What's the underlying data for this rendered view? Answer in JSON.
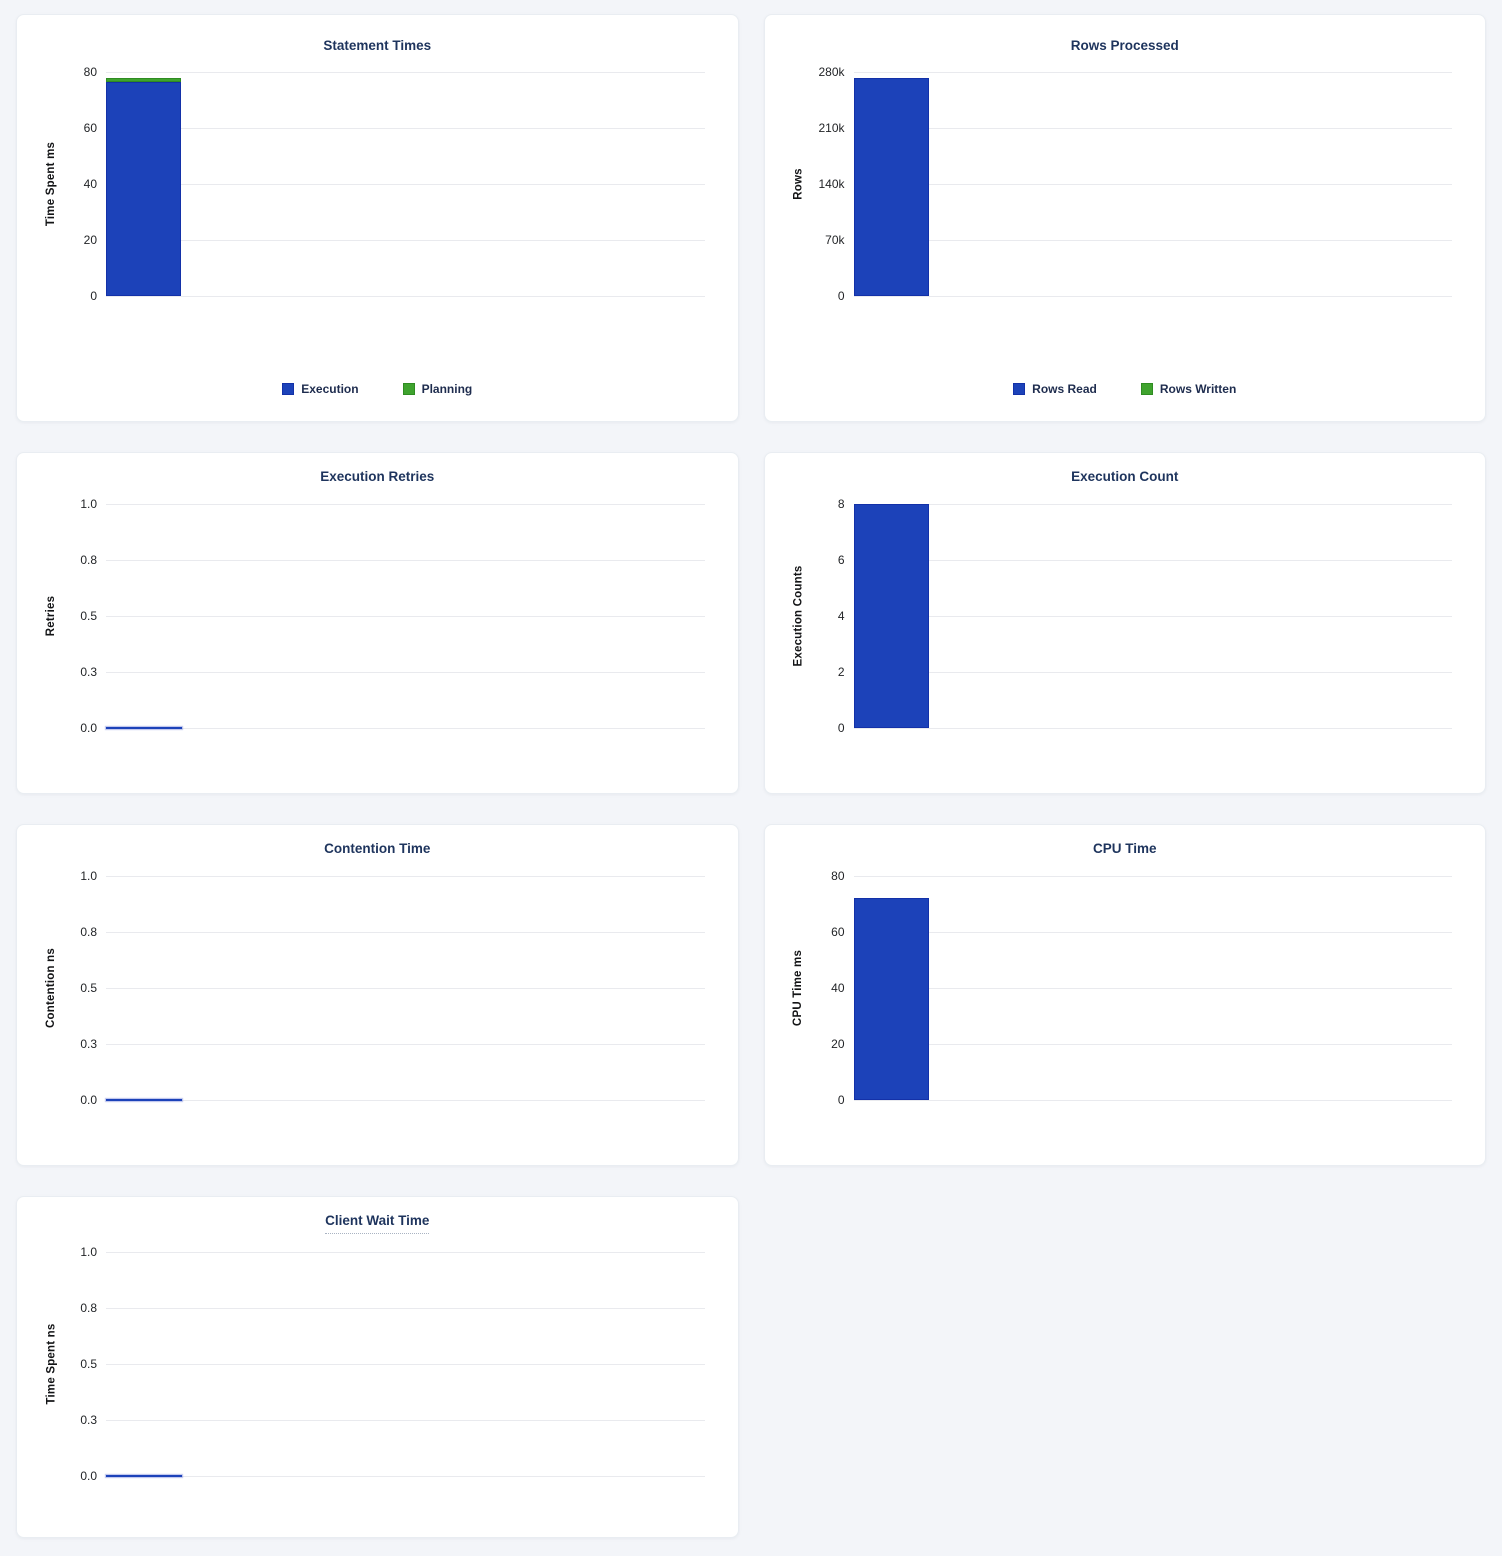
{
  "palette": {
    "bar_blue": "#1c42b9",
    "bar_blue_border": "#1331a8",
    "bar_green": "#3fa32e",
    "bar_green_border": "#2f8c22",
    "title_color": "#1e345d",
    "page_background": "#f3f5f9",
    "gridline_color": "#e9eaee"
  },
  "chart_data": [
    {
      "type": "bar",
      "title": "Statement Times",
      "title_has_tooltip": false,
      "ylabel": "Time Spent ms",
      "ylim": [
        0,
        80
      ],
      "yticks": [
        "80",
        "60",
        "40",
        "20",
        "0"
      ],
      "grid": true,
      "stacked": true,
      "categories": [
        ""
      ],
      "series": [
        {
          "name": "Execution",
          "values": [
            76.5
          ],
          "color": "#1c42b9"
        },
        {
          "name": "Planning",
          "values": [
            1.5
          ],
          "color": "#3fa32e"
        }
      ],
      "legend_position": "bottom",
      "legend": [
        {
          "label": "Execution",
          "color": "#1c42b9",
          "border": "#1331a8"
        },
        {
          "label": "Planning",
          "color": "#3fa32e",
          "border": "#2f8c22"
        }
      ],
      "panel_size": "tall"
    },
    {
      "type": "bar",
      "title": "Rows Processed",
      "title_has_tooltip": false,
      "ylabel": "Rows",
      "ylim": [
        0,
        280000
      ],
      "yticks": [
        "280k",
        "210k",
        "140k",
        "70k",
        "0"
      ],
      "grid": true,
      "stacked": true,
      "categories": [
        ""
      ],
      "series": [
        {
          "name": "Rows Read",
          "values": [
            273000
          ],
          "color": "#1c42b9"
        },
        {
          "name": "Rows Written",
          "values": [
            0
          ],
          "color": "#3fa32e"
        }
      ],
      "legend_position": "bottom",
      "legend": [
        {
          "label": "Rows Read",
          "color": "#1c42b9",
          "border": "#1331a8"
        },
        {
          "label": "Rows Written",
          "color": "#3fa32e",
          "border": "#2f8c22"
        }
      ],
      "panel_size": "tall"
    },
    {
      "type": "bar",
      "title": "Execution Retries",
      "title_has_tooltip": false,
      "ylabel": "Retries",
      "ylim": [
        0,
        1
      ],
      "yticks": [
        "1.0",
        "0.8",
        "0.5",
        "0.3",
        "0.0"
      ],
      "grid": true,
      "stacked": false,
      "categories": [
        ""
      ],
      "series": [
        {
          "name": "Retries",
          "values": [
            0
          ],
          "color": "#1c42b9"
        }
      ],
      "legend_position": "none",
      "legend": [],
      "panel_size": "short"
    },
    {
      "type": "bar",
      "title": "Execution Count",
      "title_has_tooltip": false,
      "ylabel": "Execution Counts",
      "ylim": [
        0,
        8
      ],
      "yticks": [
        "8",
        "6",
        "4",
        "2",
        "0"
      ],
      "grid": true,
      "stacked": false,
      "categories": [
        ""
      ],
      "series": [
        {
          "name": "Execution Count",
          "values": [
            8
          ],
          "color": "#1c42b9"
        }
      ],
      "legend_position": "none",
      "legend": [],
      "panel_size": "short"
    },
    {
      "type": "bar",
      "title": "Contention Time",
      "title_has_tooltip": false,
      "ylabel": "Contention ns",
      "ylim": [
        0,
        1
      ],
      "yticks": [
        "1.0",
        "0.8",
        "0.5",
        "0.3",
        "0.0"
      ],
      "grid": true,
      "stacked": false,
      "categories": [
        ""
      ],
      "series": [
        {
          "name": "Contention Time",
          "values": [
            0
          ],
          "color": "#1c42b9"
        }
      ],
      "legend_position": "none",
      "legend": [],
      "panel_size": "short"
    },
    {
      "type": "bar",
      "title": "CPU Time",
      "title_has_tooltip": false,
      "ylabel": "CPU Time ms",
      "ylim": [
        0,
        80
      ],
      "yticks": [
        "80",
        "60",
        "40",
        "20",
        "0"
      ],
      "grid": true,
      "stacked": false,
      "categories": [
        ""
      ],
      "series": [
        {
          "name": "CPU Time",
          "values": [
            72
          ],
          "color": "#1c42b9"
        }
      ],
      "legend_position": "none",
      "legend": [],
      "panel_size": "short"
    },
    {
      "type": "bar",
      "title": "Client Wait Time",
      "title_has_tooltip": true,
      "ylabel": "Time Spent ns",
      "ylim": [
        0,
        1
      ],
      "yticks": [
        "1.0",
        "0.8",
        "0.5",
        "0.3",
        "0.0"
      ],
      "grid": true,
      "stacked": false,
      "categories": [
        ""
      ],
      "series": [
        {
          "name": "Client Wait Time",
          "values": [
            0
          ],
          "color": "#1c42b9"
        }
      ],
      "legend_position": "none",
      "legend": [],
      "panel_size": "short"
    }
  ]
}
